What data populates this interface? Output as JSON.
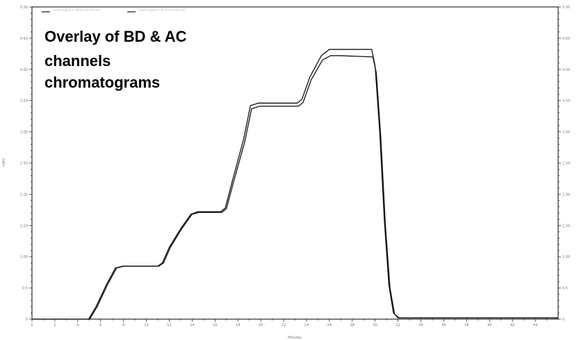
{
  "chart_data": {
    "type": "line",
    "annotation_lines": [
      "Overlay of BD & AC",
      "channels",
      "chromatograms"
    ],
    "xlabel": "Minutes",
    "ylabel": "mAU",
    "xlim": [
      0,
      46
    ],
    "ylim": [
      0,
      5
    ],
    "x_ticks": [
      "0",
      "2",
      "4",
      "6",
      "8",
      "10",
      "12",
      "14",
      "16",
      "18",
      "20",
      "22",
      "24",
      "26",
      "28",
      "30",
      "32",
      "34",
      "36",
      "38",
      "40",
      "42",
      "44"
    ],
    "y_ticks": [
      "0",
      "0.5",
      "1.00",
      "1.50",
      "2.00",
      "2.50",
      "3.00",
      "3.50",
      "4.00",
      "4.50",
      "5.00"
    ],
    "y2_ticks": [
      "0",
      "0.5",
      "1.00",
      "1.50",
      "2.00",
      "2.50",
      "3.00",
      "3.50",
      "4.00",
      "4.50",
      "5.00"
    ],
    "legend": [
      {
        "label": "Lorem Signal 1: DB Ex:Ch 254 nm",
        "color": "#111111"
      },
      {
        "label": "Lorem Signal 2: AC Ex:Ch 254 nm",
        "color": "#111111"
      }
    ],
    "series": [
      {
        "color": "#111111",
        "x": [
          0,
          4.95,
          5.6,
          6.5,
          7.3,
          8.0,
          11.0,
          11.4,
          12.0,
          13.0,
          13.9,
          14.5,
          16.5,
          16.9,
          17.5,
          18.5,
          19.1,
          19.8,
          23.2,
          23.6,
          24.3,
          25.3,
          26.0,
          26.8,
          29.7,
          30.0,
          30.4,
          30.8,
          31.2,
          31.6,
          32.0,
          46
        ],
        "y": [
          0,
          0,
          0.2,
          0.55,
          0.82,
          0.85,
          0.85,
          0.9,
          1.15,
          1.45,
          1.68,
          1.72,
          1.72,
          1.78,
          2.2,
          2.88,
          3.42,
          3.46,
          3.46,
          3.52,
          3.88,
          4.22,
          4.32,
          4.32,
          4.32,
          4.05,
          3.0,
          1.6,
          0.55,
          0.1,
          0.02,
          0.02
        ]
      },
      {
        "color": "#111111",
        "x": [
          0,
          5.05,
          5.7,
          6.6,
          7.4,
          8.1,
          11.1,
          11.5,
          12.1,
          13.1,
          14.0,
          14.6,
          16.6,
          17.0,
          17.6,
          18.6,
          19.2,
          19.9,
          23.3,
          23.7,
          24.4,
          25.4,
          26.1,
          26.9,
          29.8,
          30.1,
          30.5,
          30.9,
          31.3,
          31.7,
          32.1,
          46
        ],
        "y": [
          0,
          0,
          0.2,
          0.55,
          0.82,
          0.85,
          0.85,
          0.9,
          1.15,
          1.45,
          1.68,
          1.71,
          1.71,
          1.77,
          2.18,
          2.84,
          3.37,
          3.41,
          3.41,
          3.47,
          3.83,
          4.15,
          4.22,
          4.22,
          4.2,
          3.95,
          2.9,
          1.5,
          0.5,
          0.08,
          0.02,
          0.02
        ]
      }
    ]
  }
}
